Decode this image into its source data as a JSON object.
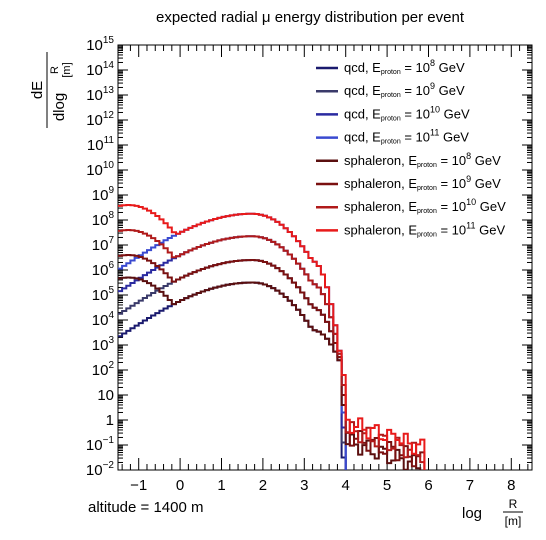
{
  "chart_data": {
    "type": "line",
    "title": "expected radial μ energy distribution per event",
    "ylabel": {
      "num": "dE",
      "den_prefix": "dlog",
      "frac_num": "R",
      "frac_den": "[m]"
    },
    "xlabel": {
      "prefix": "log",
      "frac_num": "R",
      "frac_den": "[m]"
    },
    "annotation": "altitude = 1400 m",
    "xlim": [
      -1.5,
      8.5
    ],
    "ylim_log10": [
      -2,
      15
    ],
    "x_ticks": [
      "−1",
      "0",
      "1",
      "2",
      "3",
      "4",
      "5",
      "6",
      "7",
      "8"
    ],
    "x_tick_values": [
      -1,
      0,
      1,
      2,
      3,
      4,
      5,
      6,
      7,
      8
    ],
    "y_ticks": [
      {
        "base": "10",
        "exp": "15"
      },
      {
        "base": "10",
        "exp": "14"
      },
      {
        "base": "10",
        "exp": "13"
      },
      {
        "base": "10",
        "exp": "12"
      },
      {
        "base": "10",
        "exp": "11"
      },
      {
        "base": "10",
        "exp": "10"
      },
      {
        "base": "10",
        "exp": "9"
      },
      {
        "base": "10",
        "exp": "8"
      },
      {
        "base": "10",
        "exp": "7"
      },
      {
        "base": "10",
        "exp": "6"
      },
      {
        "base": "10",
        "exp": "5"
      },
      {
        "base": "10",
        "exp": "4"
      },
      {
        "base": "10",
        "exp": "3"
      },
      {
        "base": "10",
        "exp": "2"
      },
      {
        "base": "10",
        "exp": ""
      },
      {
        "base": "1",
        "exp": ""
      },
      {
        "base": "10",
        "exp": "−1"
      },
      {
        "base": "10",
        "exp": "−2"
      }
    ],
    "y_tick_values_log10": [
      15,
      14,
      13,
      12,
      11,
      10,
      9,
      8,
      7,
      6,
      5,
      4,
      3,
      2,
      1,
      0,
      -1,
      -2
    ],
    "grid": false,
    "legend_position": "top-right",
    "series": [
      {
        "name": "qcd",
        "label_pre": "qcd, E",
        "label_sub": "proton",
        "label_mid": " = 10",
        "label_exp": "8",
        "label_post": " GeV",
        "color": "#1a1a6e",
        "log_peak": 5.5,
        "log_start": 3.3
      },
      {
        "name": "qcd",
        "label_pre": "qcd, E",
        "label_sub": "proton",
        "label_mid": " = 10",
        "label_exp": "9",
        "label_post": " GeV",
        "color": "#3a3a6a",
        "log_peak": 6.4,
        "log_start": 4.2
      },
      {
        "name": "qcd",
        "label_pre": "qcd, E",
        "label_sub": "proton",
        "label_mid": " = 10",
        "label_exp": "10",
        "label_post": " GeV",
        "color": "#2a2aa0",
        "log_peak": 7.35,
        "log_start": 5.1
      },
      {
        "name": "qcd",
        "label_pre": "qcd, E",
        "label_sub": "proton",
        "label_mid": " = 10",
        "label_exp": "11",
        "label_post": " GeV",
        "color": "#3a4ad0",
        "log_peak": 8.25,
        "log_start": 6.0
      },
      {
        "name": "sphaleron",
        "label_pre": "sphaleron, E",
        "label_sub": "proton",
        "label_mid": " = 10",
        "label_exp": "8",
        "label_post": " GeV",
        "color": "#5a0f0f",
        "log_peak": 5.5,
        "log_start": 3.3,
        "bump_log": 5.7
      },
      {
        "name": "sphaleron",
        "label_pre": "sphaleron, E",
        "label_sub": "proton",
        "label_mid": " = 10",
        "label_exp": "9",
        "label_post": " GeV",
        "color": "#7a1010",
        "log_peak": 6.4,
        "log_start": 4.2,
        "bump_log": 6.6
      },
      {
        "name": "sphaleron",
        "label_pre": "sphaleron, E",
        "label_sub": "proton",
        "label_mid": " = 10",
        "label_exp": "10",
        "label_post": " GeV",
        "color": "#b01a1a",
        "log_peak": 7.35,
        "log_start": 5.1,
        "bump_log": 7.6
      },
      {
        "name": "sphaleron",
        "label_pre": "sphaleron, E",
        "label_sub": "proton",
        "label_mid": " = 10",
        "label_exp": "11",
        "label_post": " GeV",
        "color": "#e81a1a",
        "log_peak": 8.25,
        "log_start": 6.0,
        "bump_log": 8.6
      }
    ]
  }
}
